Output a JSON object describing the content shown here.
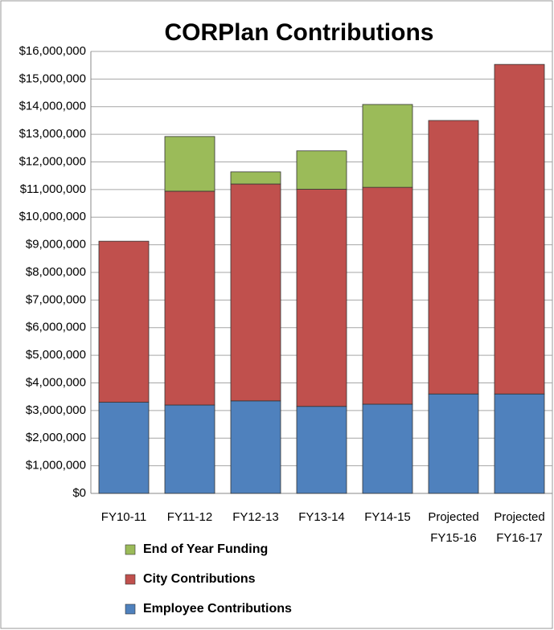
{
  "chart_data": {
    "type": "stacked_bar",
    "title": "CORPlan Contributions",
    "categories": [
      "FY10-11",
      "FY11-12",
      "FY12-13",
      "FY13-14",
      "FY14-15",
      "Projected FY15-16",
      "Projected FY16-17"
    ],
    "series": [
      {
        "name": "Employee Contributions",
        "color": "#4f81bd",
        "values": [
          3300000,
          3200000,
          3350000,
          3150000,
          3230000,
          3600000,
          3600000
        ]
      },
      {
        "name": "City Contributions",
        "color": "#c0504d",
        "values": [
          5830000,
          7740000,
          7850000,
          7860000,
          7850000,
          9900000,
          11930000
        ]
      },
      {
        "name": "End of Year Funding",
        "color": "#9bbb59",
        "values": [
          0,
          1980000,
          440000,
          1390000,
          3000000,
          0,
          0
        ]
      }
    ],
    "ylim": [
      0,
      16000000
    ],
    "yticks": [
      {
        "value": 0,
        "label": "$0"
      },
      {
        "value": 1000000,
        "label": "$1,000,000"
      },
      {
        "value": 2000000,
        "label": "$2,000,000"
      },
      {
        "value": 3000000,
        "label": "$3,000,000"
      },
      {
        "value": 4000000,
        "label": "$4,000,000"
      },
      {
        "value": 5000000,
        "label": "$5,000,000"
      },
      {
        "value": 6000000,
        "label": "$6,000,000"
      },
      {
        "value": 7000000,
        "label": "$7,000,000"
      },
      {
        "value": 8000000,
        "label": "$8,000,000"
      },
      {
        "value": 9000000,
        "label": "$9,000,000"
      },
      {
        "value": 10000000,
        "label": "$10,000,000"
      },
      {
        "value": 11000000,
        "label": "$11,000,000"
      },
      {
        "value": 12000000,
        "label": "$12,000,000"
      },
      {
        "value": 13000000,
        "label": "$13,000,000"
      },
      {
        "value": 14000000,
        "label": "$14,000,000"
      },
      {
        "value": 15000000,
        "label": "$15,000,000"
      },
      {
        "value": 16000000,
        "label": "$16,000,000"
      }
    ],
    "grid": true
  }
}
